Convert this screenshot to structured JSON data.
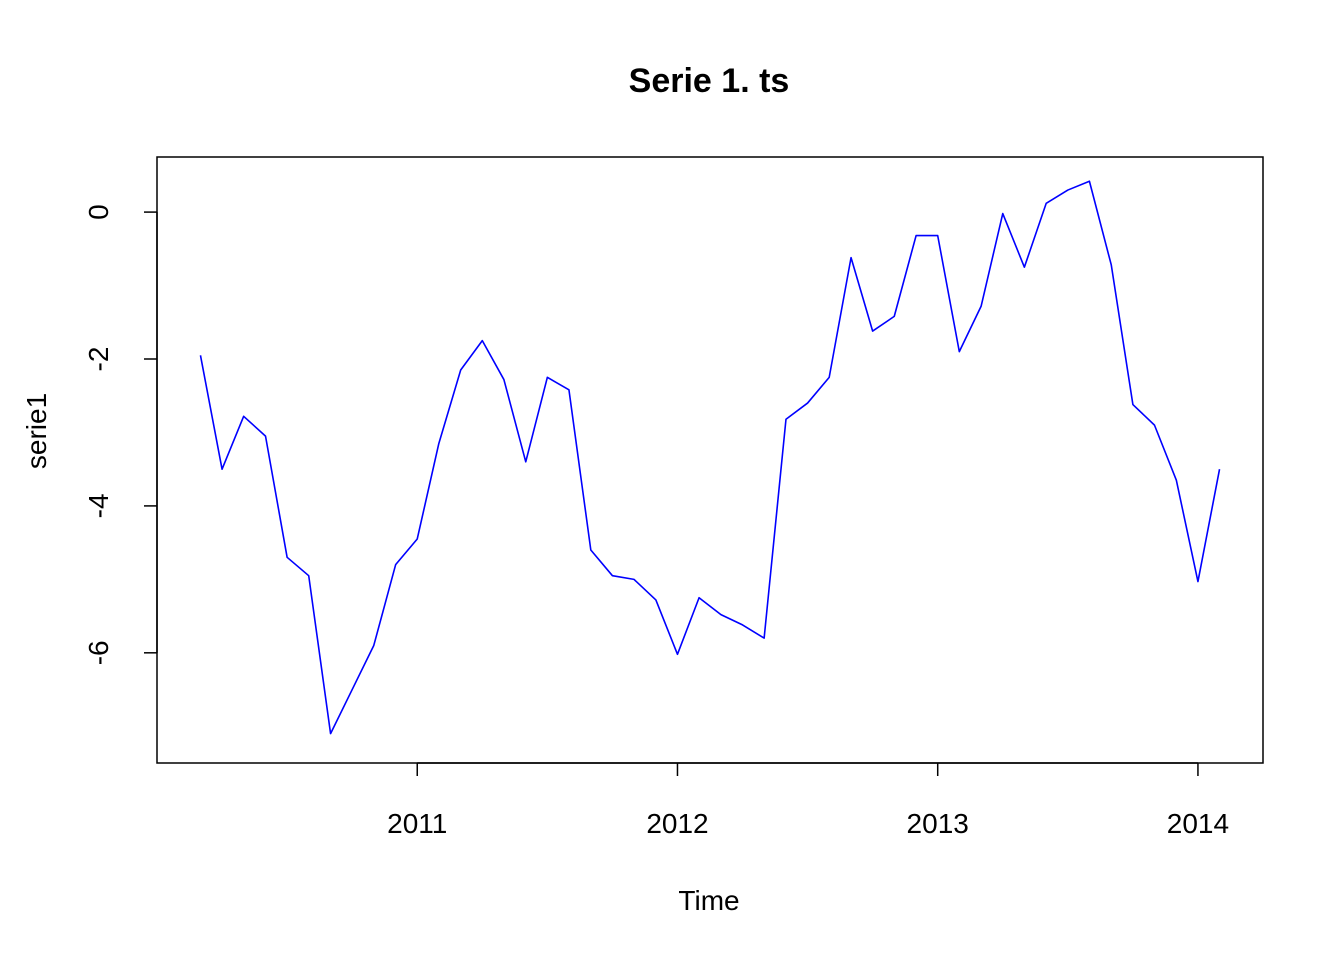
{
  "chart_data": {
    "type": "line",
    "title": "Serie 1. ts",
    "xlabel": "Time",
    "ylabel": "serie1",
    "series_color": "#0000FF",
    "x": [
      2010.167,
      2010.25,
      2010.333,
      2010.417,
      2010.5,
      2010.583,
      2010.667,
      2010.75,
      2010.833,
      2010.917,
      2011.0,
      2011.083,
      2011.167,
      2011.25,
      2011.333,
      2011.417,
      2011.5,
      2011.583,
      2011.667,
      2011.75,
      2011.833,
      2011.917,
      2012.0,
      2012.083,
      2012.167,
      2012.25,
      2012.333,
      2012.417,
      2012.5,
      2012.583,
      2012.667,
      2012.75,
      2012.833,
      2012.917,
      2013.0,
      2013.083,
      2013.167,
      2013.25,
      2013.333,
      2013.417,
      2013.5,
      2013.583,
      2013.667,
      2013.75,
      2013.833,
      2013.917,
      2014.0,
      2014.083
    ],
    "series": [
      {
        "values": [
          -1.95,
          -3.5,
          -2.78,
          -3.05,
          -4.7,
          -4.95,
          -7.1,
          -6.5,
          -5.9,
          -4.8,
          -4.45,
          -3.15,
          -2.15,
          -1.75,
          -2.28,
          -3.4,
          -2.25,
          -2.42,
          -4.6,
          -4.95,
          -5.0,
          -5.28,
          -6.02,
          -5.25,
          -5.48,
          -5.62,
          -5.8,
          -2.82,
          -2.6,
          -2.25,
          -0.62,
          -1.62,
          -1.42,
          -0.32,
          -0.32,
          -1.9,
          -1.28,
          -0.02,
          -0.75,
          0.12,
          0.3,
          0.42,
          -0.72,
          -2.62,
          -2.9,
          -3.65,
          -5.03,
          -3.5
        ]
      }
    ],
    "xlim": [
      2010.0,
      2014.25
    ],
    "ylim": [
      -7.5,
      0.75
    ],
    "x_ticks": [
      2011,
      2012,
      2013,
      2014
    ],
    "x_tick_labels": [
      "2011",
      "2012",
      "2013",
      "2014"
    ],
    "y_ticks": [
      0,
      -2,
      -4,
      -6
    ],
    "y_tick_labels": [
      "0",
      "-2",
      "-4",
      "-6"
    ],
    "grid": false,
    "legend": "none"
  }
}
